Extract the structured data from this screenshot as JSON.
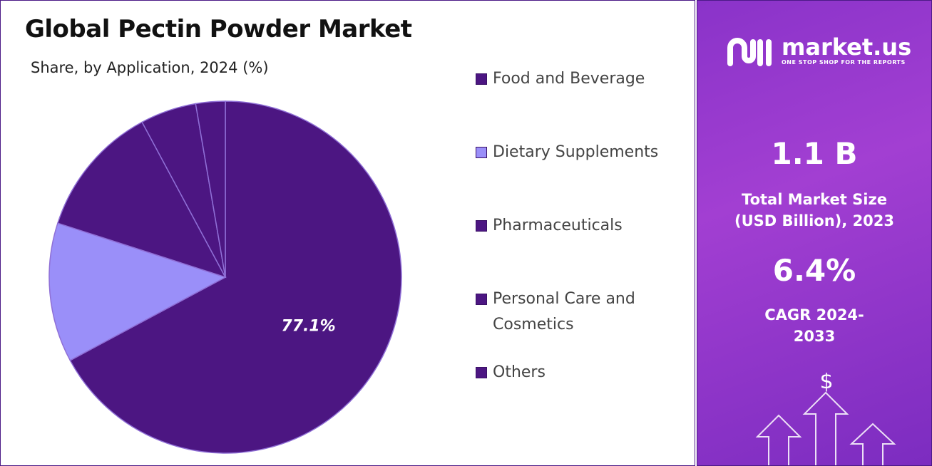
{
  "chart_data": {
    "type": "pie",
    "title": "Global Pectin Powder Market",
    "subtitle": "Share, by Application, 2024 (%)",
    "categories": [
      "Food and Beverage",
      "Dietary Supplements",
      "Pharmaceuticals",
      "Personal Care and Cosmetics",
      "Others"
    ],
    "values": [
      77.1,
      14.7,
      14.0,
      5.9,
      3.1
    ],
    "value_labels": [
      "77.1%",
      null,
      null,
      null,
      null
    ],
    "colors": [
      "#4c1682",
      "#9a8ff9",
      "#4c1682",
      "#4c1682",
      "#4c1682"
    ],
    "legend": "right"
  },
  "side_panel": {
    "logo": "market.us",
    "tagline": "ONE STOP SHOP FOR THE REPORTS",
    "stats": [
      {
        "value": "1.1 B",
        "label": "Total Market Size (USD Billion), 2023"
      },
      {
        "value": "6.4%",
        "label": "CAGR 2024-2033"
      }
    ]
  }
}
